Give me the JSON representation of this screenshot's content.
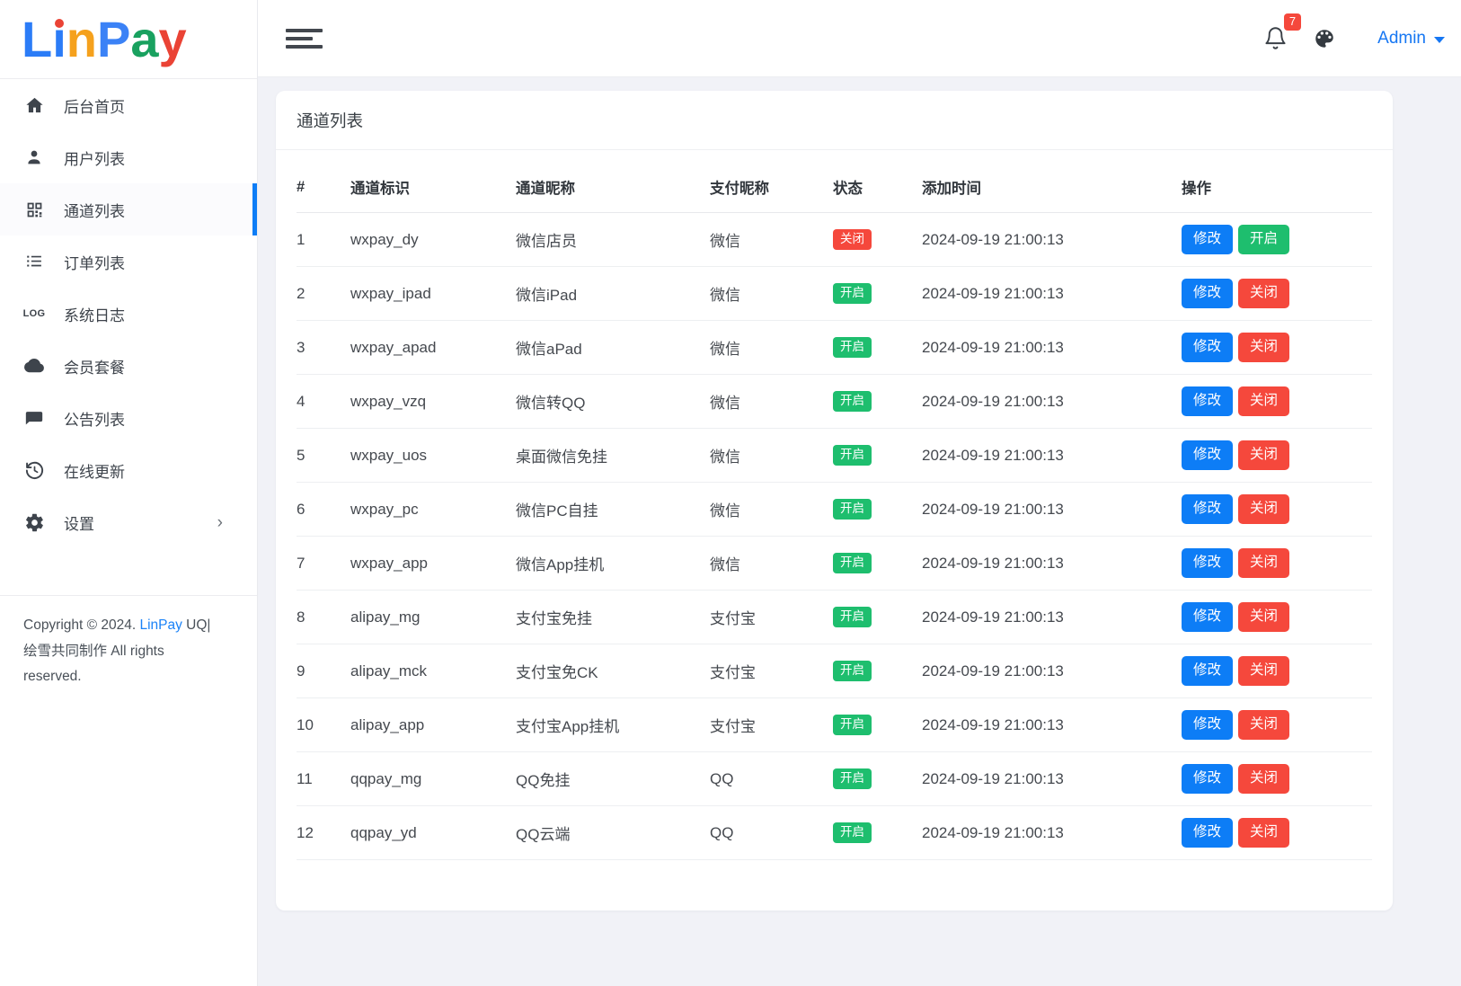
{
  "colors": {
    "primary": "#0d7df6",
    "success": "#1ebe6e",
    "danger": "#f5483c",
    "link": "#1a82f7"
  },
  "logo": {
    "letters": [
      {
        "char": "L",
        "color": "#2b7cf7"
      },
      {
        "char": "i",
        "color": "#2b7cf7",
        "dot": "#ea4335"
      },
      {
        "char": "n",
        "color": "#f5a11d"
      },
      {
        "char": "P",
        "color": "#3b82f6"
      },
      {
        "char": "a",
        "color": "#19a15f"
      },
      {
        "char": "y",
        "color": "#ea4335"
      }
    ]
  },
  "topbar": {
    "notification_count": "7",
    "admin_label": "Admin"
  },
  "sidebar": {
    "items": [
      {
        "key": "home",
        "label": "后台首页",
        "icon": "home-icon",
        "active": false
      },
      {
        "key": "users",
        "label": "用户列表",
        "icon": "user-icon",
        "active": false
      },
      {
        "key": "channels",
        "label": "通道列表",
        "icon": "qr-code-icon",
        "active": true
      },
      {
        "key": "orders",
        "label": "订单列表",
        "icon": "list-icon",
        "active": false
      },
      {
        "key": "system-logs",
        "label": "系统日志",
        "icon": "log-icon",
        "active": false
      },
      {
        "key": "member-plans",
        "label": "会员套餐",
        "icon": "cloud-icon",
        "active": false
      },
      {
        "key": "announcements",
        "label": "公告列表",
        "icon": "message-icon",
        "active": false
      },
      {
        "key": "online-update",
        "label": "在线更新",
        "icon": "update-icon",
        "active": false
      },
      {
        "key": "settings",
        "label": "设置",
        "icon": "gear-icon",
        "active": false,
        "has_submenu": true,
        "chevron": "›"
      }
    ],
    "footer": {
      "prefix": "Copyright © 2024. ",
      "link": "LinPay",
      "suffix": " UQ|绘雪共同制作 All rights reserved."
    }
  },
  "card": {
    "title": "通道列表"
  },
  "table": {
    "headers": [
      "#",
      "通道标识",
      "通道昵称",
      "支付昵称",
      "状态",
      "添加时间",
      "操作"
    ],
    "rows": [
      {
        "num": "1",
        "id": "wxpay_dy",
        "nickname": "微信店员",
        "pay": "微信",
        "status": "关闭",
        "status_type": "closed",
        "time": "2024-09-19 21:00:13",
        "actions": [
          {
            "label": "修改",
            "style": "primary",
            "name": "edit-button"
          },
          {
            "label": "开启",
            "style": "success",
            "name": "enable-button"
          }
        ]
      },
      {
        "num": "2",
        "id": "wxpay_ipad",
        "nickname": "微信iPad",
        "pay": "微信",
        "status": "开启",
        "status_type": "open",
        "time": "2024-09-19 21:00:13",
        "actions": [
          {
            "label": "修改",
            "style": "primary",
            "name": "edit-button"
          },
          {
            "label": "关闭",
            "style": "danger",
            "name": "disable-button"
          }
        ]
      },
      {
        "num": "3",
        "id": "wxpay_apad",
        "nickname": "微信aPad",
        "pay": "微信",
        "status": "开启",
        "status_type": "open",
        "time": "2024-09-19 21:00:13",
        "actions": [
          {
            "label": "修改",
            "style": "primary",
            "name": "edit-button"
          },
          {
            "label": "关闭",
            "style": "danger",
            "name": "disable-button"
          }
        ]
      },
      {
        "num": "4",
        "id": "wxpay_vzq",
        "nickname": "微信转QQ",
        "pay": "微信",
        "status": "开启",
        "status_type": "open",
        "time": "2024-09-19 21:00:13",
        "actions": [
          {
            "label": "修改",
            "style": "primary",
            "name": "edit-button"
          },
          {
            "label": "关闭",
            "style": "danger",
            "name": "disable-button"
          }
        ]
      },
      {
        "num": "5",
        "id": "wxpay_uos",
        "nickname": "桌面微信免挂",
        "pay": "微信",
        "status": "开启",
        "status_type": "open",
        "time": "2024-09-19 21:00:13",
        "actions": [
          {
            "label": "修改",
            "style": "primary",
            "name": "edit-button"
          },
          {
            "label": "关闭",
            "style": "danger",
            "name": "disable-button"
          }
        ]
      },
      {
        "num": "6",
        "id": "wxpay_pc",
        "nickname": "微信PC自挂",
        "pay": "微信",
        "status": "开启",
        "status_type": "open",
        "time": "2024-09-19 21:00:13",
        "actions": [
          {
            "label": "修改",
            "style": "primary",
            "name": "edit-button"
          },
          {
            "label": "关闭",
            "style": "danger",
            "name": "disable-button"
          }
        ]
      },
      {
        "num": "7",
        "id": "wxpay_app",
        "nickname": "微信App挂机",
        "pay": "微信",
        "status": "开启",
        "status_type": "open",
        "time": "2024-09-19 21:00:13",
        "actions": [
          {
            "label": "修改",
            "style": "primary",
            "name": "edit-button"
          },
          {
            "label": "关闭",
            "style": "danger",
            "name": "disable-button"
          }
        ]
      },
      {
        "num": "8",
        "id": "alipay_mg",
        "nickname": "支付宝免挂",
        "pay": "支付宝",
        "status": "开启",
        "status_type": "open",
        "time": "2024-09-19 21:00:13",
        "actions": [
          {
            "label": "修改",
            "style": "primary",
            "name": "edit-button"
          },
          {
            "label": "关闭",
            "style": "danger",
            "name": "disable-button"
          }
        ]
      },
      {
        "num": "9",
        "id": "alipay_mck",
        "nickname": "支付宝免CK",
        "pay": "支付宝",
        "status": "开启",
        "status_type": "open",
        "time": "2024-09-19 21:00:13",
        "actions": [
          {
            "label": "修改",
            "style": "primary",
            "name": "edit-button"
          },
          {
            "label": "关闭",
            "style": "danger",
            "name": "disable-button"
          }
        ]
      },
      {
        "num": "10",
        "id": "alipay_app",
        "nickname": "支付宝App挂机",
        "pay": "支付宝",
        "status": "开启",
        "status_type": "open",
        "time": "2024-09-19 21:00:13",
        "actions": [
          {
            "label": "修改",
            "style": "primary",
            "name": "edit-button"
          },
          {
            "label": "关闭",
            "style": "danger",
            "name": "disable-button"
          }
        ]
      },
      {
        "num": "11",
        "id": "qqpay_mg",
        "nickname": "QQ免挂",
        "pay": "QQ",
        "status": "开启",
        "status_type": "open",
        "time": "2024-09-19 21:00:13",
        "actions": [
          {
            "label": "修改",
            "style": "primary",
            "name": "edit-button"
          },
          {
            "label": "关闭",
            "style": "danger",
            "name": "disable-button"
          }
        ]
      },
      {
        "num": "12",
        "id": "qqpay_yd",
        "nickname": "QQ云端",
        "pay": "QQ",
        "status": "开启",
        "status_type": "open",
        "time": "2024-09-19 21:00:13",
        "actions": [
          {
            "label": "修改",
            "style": "primary",
            "name": "edit-button"
          },
          {
            "label": "关闭",
            "style": "danger",
            "name": "disable-button"
          }
        ]
      }
    ]
  }
}
